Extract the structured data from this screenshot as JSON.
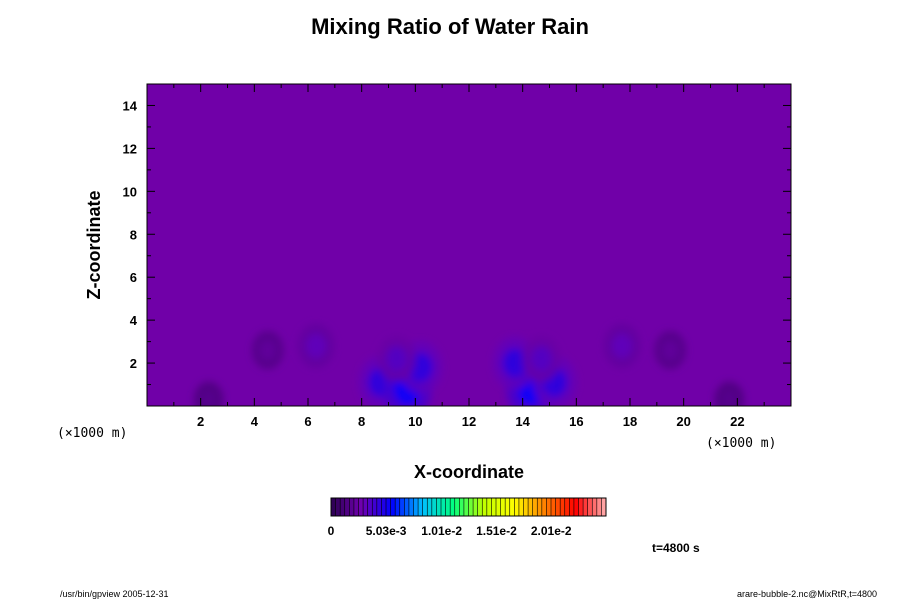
{
  "chart_data": {
    "type": "heatmap",
    "title": "Mixing Ratio of Water Rain",
    "xlabel": "X-coordinate",
    "ylabel": "Z-coordinate",
    "x_unit_label": "(×1000 m)",
    "y_unit_label": "(×1000 m)",
    "xlim": [
      0,
      24
    ],
    "ylim": [
      0,
      15
    ],
    "x_ticks": [
      2,
      4,
      6,
      8,
      10,
      12,
      14,
      16,
      18,
      20,
      22
    ],
    "y_ticks": [
      2,
      4,
      6,
      8,
      10,
      12,
      14
    ],
    "colorbar": {
      "min": 0,
      "max": 0.0251,
      "tick_labels": [
        "0",
        "5.03e-3",
        "1.01e-2",
        "1.51e-2",
        "2.01e-2"
      ],
      "tick_values": [
        0,
        0.00503,
        0.0101,
        0.0151,
        0.0201
      ],
      "colormap": [
        "#2a0050",
        "#7000b0",
        "#0000ff",
        "#00c0ff",
        "#00ff80",
        "#c0ff00",
        "#ffff00",
        "#ff8000",
        "#ff0000",
        "#ffb0b0"
      ]
    },
    "background_color": "#7000a8",
    "regions": [
      {
        "x": 8.7,
        "z": 1.1,
        "level": 0.0045
      },
      {
        "x": 9.7,
        "z": 0.8,
        "level": 0.0055
      },
      {
        "x": 10.2,
        "z": 1.8,
        "level": 0.0045
      },
      {
        "x": 9.3,
        "z": 2.2,
        "level": 0.0035
      },
      {
        "x": 6.3,
        "z": 2.8,
        "level": 0.0032
      },
      {
        "x": 14.3,
        "z": 0.8,
        "level": 0.0055
      },
      {
        "x": 13.7,
        "z": 2.0,
        "level": 0.0045
      },
      {
        "x": 15.2,
        "z": 1.1,
        "level": 0.0045
      },
      {
        "x": 14.7,
        "z": 2.2,
        "level": 0.0035
      },
      {
        "x": 17.7,
        "z": 2.8,
        "level": 0.0032
      },
      {
        "x": 4.5,
        "z": 2.6,
        "level": 0.0022
      },
      {
        "x": 19.5,
        "z": 2.6,
        "level": 0.0022
      },
      {
        "x": 2.3,
        "z": 0.3,
        "level": 0.0018
      },
      {
        "x": 21.7,
        "z": 0.3,
        "level": 0.0018
      }
    ]
  },
  "time_label": "t=4800 s",
  "footer_left": "/usr/bin/gpview 2005-12-31",
  "footer_right": "arare-bubble-2.nc@MixRtR,t=4800"
}
